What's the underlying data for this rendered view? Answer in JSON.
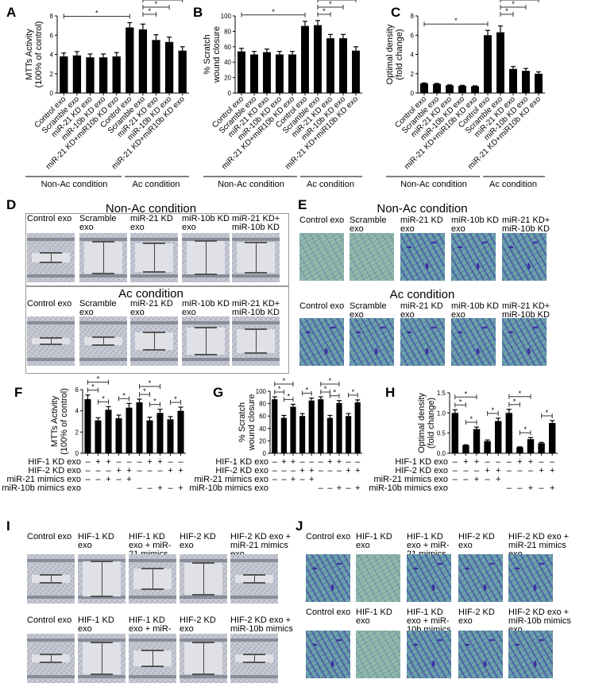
{
  "panels": {
    "A": "A",
    "B": "B",
    "C": "C",
    "D": "D",
    "E": "E",
    "F": "F",
    "G": "G",
    "H": "H",
    "I": "I",
    "J": "J"
  },
  "groups": {
    "non_ac": "Non-Ac condition",
    "ac": "Ac condition"
  },
  "image_panels": {
    "D": {
      "title_top": "Non-Ac condition",
      "title_bottom": "Ac condition",
      "labels_top": [
        "Control exo",
        "Scramble exo",
        "miR-21 KD exo",
        "miR-10b KD exo",
        "miR-21 KD+ miR-10b KD exo"
      ],
      "labels_bottom": [
        "Control exo",
        "Scramble exo",
        "miR-21 KD exo",
        "miR-10b KD exo",
        "miR-21 KD+ miR-10b KD exo"
      ]
    },
    "E": {
      "title_top": "Non-Ac condition",
      "title_bottom": "Ac condition",
      "labels_top": [
        "Control exo",
        "Scramble exo",
        "miR-21 KD exo",
        "miR-10b KD exo",
        "miR-21 KD+ miR-10b KD exo"
      ],
      "labels_bottom": [
        "Control exo",
        "Scramble exo",
        "miR-21 KD exo",
        "miR-10b KD exo",
        "miR-21 KD+ miR-10b KD exo"
      ]
    },
    "I": {
      "labels_top": [
        "Control exo",
        "HIF-1 KD exo",
        "HIF-1 KD exo + miR-21 mimics exo",
        "HIF-2 KD exo",
        "HIF-2 KD exo + miR-21 mimics exo"
      ],
      "labels_bottom": [
        "Control exo",
        "HIF-1 KD exo",
        "HIF-1 KD exo + miR-10b mimics exo",
        "HIF-2 KD exo",
        "HIF-2 KD exo + miR-10b mimics exo"
      ]
    },
    "J": {
      "labels_top": [
        "Control exo",
        "HIF-1 KD exo",
        "HIF-1 KD exo + miR-21 mimics exo",
        "HIF-2 KD exo",
        "HIF-2 KD exo + miR-21 mimics exo"
      ],
      "labels_bottom": [
        "Control exo",
        "HIF-1 KD exo",
        "HIF-1 KD exo + miR-10b mimics exo",
        "HIF-2 KD exo",
        "HIF-2 KD exo + miR-10b mimics exo"
      ]
    }
  },
  "chart_data": [
    {
      "id": "A",
      "type": "bar",
      "ylabel": "MTTs Activity (100% of control)",
      "ylim": [
        0,
        8
      ],
      "yticks": [
        0,
        2,
        4,
        6,
        8
      ],
      "categories": [
        "Control exo",
        "Scramble exo",
        "miR-21 KD exo",
        "miR-10b KD exo",
        "miR-21 KD+miR10b KD exo",
        "Control exo",
        "Scramble exo",
        "miR-21 KD exo",
        "miR-10b KD exo",
        "miR-21 KD+miR10b KD exo"
      ],
      "values": [
        3.8,
        3.9,
        3.7,
        3.7,
        3.8,
        6.8,
        6.6,
        5.5,
        5.3,
        4.4
      ],
      "errors": [
        0.35,
        0.4,
        0.35,
        0.35,
        0.4,
        0.5,
        0.55,
        0.55,
        0.5,
        0.4
      ],
      "significance": [
        [
          0,
          5
        ],
        [
          6,
          7
        ],
        [
          6,
          8
        ],
        [
          6,
          9
        ]
      ],
      "sig_label": "*"
    },
    {
      "id": "B",
      "type": "bar",
      "ylabel": "% Scratch wound closure",
      "ylim": [
        0,
        100
      ],
      "yticks": [
        0,
        20,
        40,
        60,
        80,
        100
      ],
      "categories": [
        "Control exo",
        "Scramble exo",
        "miR-21 KD exo",
        "miR-10b KD exo",
        "miR-21 KD+miR10b KD exo",
        "Control exo",
        "Scramble exo",
        "miR-21 KD exo",
        "miR-10b KD exo",
        "miR-21 KD+miR10b KD exo"
      ],
      "values": [
        54,
        50,
        53,
        50,
        50,
        87,
        88,
        71,
        71,
        55
      ],
      "errors": [
        4,
        4,
        4,
        4,
        4,
        6,
        6,
        5,
        5,
        5
      ],
      "significance": [
        [
          0,
          5
        ],
        [
          6,
          7
        ],
        [
          6,
          8
        ],
        [
          6,
          9
        ]
      ],
      "sig_label": "*"
    },
    {
      "id": "C",
      "type": "bar",
      "ylabel": "Optimal density (fold change)",
      "ylim": [
        0,
        8
      ],
      "yticks": [
        0,
        2,
        4,
        6,
        8
      ],
      "categories": [
        "Control exo",
        "Scramble exo",
        "miR-21 KD exo",
        "miR-10b KD exo",
        "miR-21 KD+miR10b KD exo",
        "Control exo",
        "Scramble exo",
        "miR-21 KD exo",
        "miR-10b KD exo",
        "miR-21 KD+miR10b KD exo"
      ],
      "values": [
        1.0,
        0.95,
        0.8,
        0.75,
        0.7,
        6.0,
        6.3,
        2.5,
        2.3,
        2.0
      ],
      "errors": [
        0.05,
        0.05,
        0.05,
        0.05,
        0.05,
        0.5,
        0.65,
        0.25,
        0.25,
        0.2
      ],
      "significance": [
        [
          0,
          5
        ],
        [
          6,
          7
        ],
        [
          6,
          8
        ],
        [
          6,
          9
        ]
      ],
      "sig_label": "*"
    },
    {
      "id": "F",
      "type": "bar",
      "ylabel": "MTTs Activity (100% of control)",
      "ylim": [
        0,
        6
      ],
      "yticks": [
        0,
        2,
        4,
        6
      ],
      "values": [
        5.1,
        3.1,
        4.1,
        3.3,
        4.3,
        4.8,
        3.1,
        3.8,
        3.2,
        4.0
      ],
      "errors": [
        0.4,
        0.25,
        0.3,
        0.3,
        0.4,
        0.3,
        0.3,
        0.35,
        0.25,
        0.35
      ],
      "significance": [
        [
          0,
          1
        ],
        [
          0,
          2
        ],
        [
          1,
          2
        ],
        [
          3,
          4
        ],
        [
          5,
          6
        ],
        [
          5,
          7
        ],
        [
          6,
          7
        ],
        [
          8,
          9
        ]
      ],
      "sig_label": "*"
    },
    {
      "id": "G",
      "type": "bar",
      "ylabel": "% Scratch wound closure",
      "ylim": [
        0,
        100
      ],
      "yticks": [
        0,
        20,
        40,
        60,
        80,
        100
      ],
      "values": [
        87,
        57,
        75,
        60,
        85,
        87,
        57,
        81,
        60,
        82
      ],
      "errors": [
        4,
        4,
        4,
        4,
        4,
        4,
        4,
        4,
        4,
        4
      ],
      "significance": [
        [
          0,
          1
        ],
        [
          0,
          2
        ],
        [
          1,
          2
        ],
        [
          3,
          4
        ],
        [
          5,
          6
        ],
        [
          5,
          7
        ],
        [
          6,
          7
        ],
        [
          8,
          9
        ]
      ],
      "sig_label": "*"
    },
    {
      "id": "H",
      "type": "bar",
      "ylabel": "Optimal density (fold change)",
      "ylim": [
        0,
        1.5
      ],
      "yticks": [
        "0.0",
        "0.5",
        "1.0",
        "1.5"
      ],
      "values": [
        1.0,
        0.2,
        0.6,
        0.3,
        0.8,
        1.0,
        0.15,
        0.35,
        0.25,
        0.75
      ],
      "errors": [
        0.08,
        0.01,
        0.05,
        0.03,
        0.07,
        0.09,
        0.01,
        0.04,
        0.02,
        0.06
      ],
      "significance": [
        [
          0,
          1
        ],
        [
          0,
          2
        ],
        [
          1,
          2
        ],
        [
          3,
          4
        ],
        [
          5,
          6
        ],
        [
          5,
          7
        ],
        [
          6,
          7
        ],
        [
          8,
          9
        ]
      ],
      "sig_label": "*"
    }
  ],
  "condition_rows": [
    {
      "label": "HIF-1 KD exo",
      "signs": [
        "–",
        "+",
        "+",
        "–",
        "–",
        "–",
        "+",
        "+",
        "–",
        "–"
      ]
    },
    {
      "label": "HIF-2 KD exo",
      "signs": [
        "–",
        "–",
        "–",
        "+",
        "+",
        "–",
        "–",
        "–",
        "+",
        "+"
      ]
    },
    {
      "label": "miR-21 mimics exo",
      "signs": [
        "–",
        "–",
        "+",
        "–",
        "+",
        "",
        "",
        "",
        "",
        ""
      ]
    },
    {
      "label": "miR-10b mimics exo",
      "signs": [
        "",
        "",
        "",
        "",
        "",
        "–",
        "–",
        "+",
        "–",
        "+"
      ]
    }
  ]
}
